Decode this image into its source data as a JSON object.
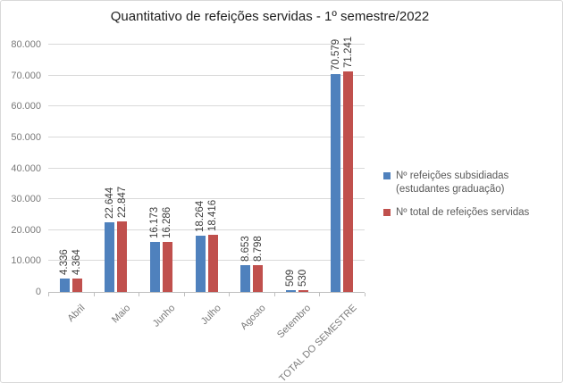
{
  "title": "Quantitativo de refeições servidas - 1º semestre/2022",
  "legend": {
    "items": [
      {
        "label": "Nº refeições subsidiadas (estudantes graduação)",
        "color": "#4F81BD"
      },
      {
        "label": "Nº total de refeições servidas",
        "color": "#C0504D"
      }
    ],
    "position": "right"
  },
  "chart_data": {
    "type": "bar",
    "title": "Quantitativo de refeições servidas - 1º semestre/2022",
    "categories": [
      "Abril",
      "Maio",
      "Junho",
      "Julho",
      "Agosto",
      "Setembro",
      "TOTAL DO SEMESTRE"
    ],
    "series": [
      {
        "name": "Nº refeições subsidiadas (estudantes graduação)",
        "color": "#4F81BD",
        "values": [
          4336,
          22644,
          16173,
          18264,
          8653,
          509,
          70579
        ],
        "labels": [
          "4.336",
          "22.644",
          "16.173",
          "18.264",
          "8.653",
          "509",
          "70.579"
        ]
      },
      {
        "name": "Nº total de refeições servidas",
        "color": "#C0504D",
        "values": [
          4364,
          22847,
          16286,
          18416,
          8798,
          530,
          71241
        ],
        "labels": [
          "4.364",
          "22.847",
          "16.286",
          "18.416",
          "8.798",
          "530",
          "71.241"
        ]
      }
    ],
    "xlabel": "",
    "ylabel": "",
    "ylim": [
      0,
      80000
    ],
    "yticks": [
      {
        "value": 0,
        "label": "0"
      },
      {
        "value": 10000,
        "label": "10.000"
      },
      {
        "value": 20000,
        "label": "20.000"
      },
      {
        "value": 30000,
        "label": "30.000"
      },
      {
        "value": 40000,
        "label": "40.000"
      },
      {
        "value": 50000,
        "label": "50.000"
      },
      {
        "value": 60000,
        "label": "60.000"
      },
      {
        "value": 70000,
        "label": "70.000"
      },
      {
        "value": 80000,
        "label": "80.000"
      }
    ],
    "grid": true,
    "data_labels_rotation": -90,
    "category_labels_rotation": -45,
    "legend_position": "right"
  },
  "colors": {
    "series_blue": "#4F81BD",
    "series_red": "#C0504D",
    "gridline": "#D9D9D9",
    "axis": "#BFBFBF"
  }
}
